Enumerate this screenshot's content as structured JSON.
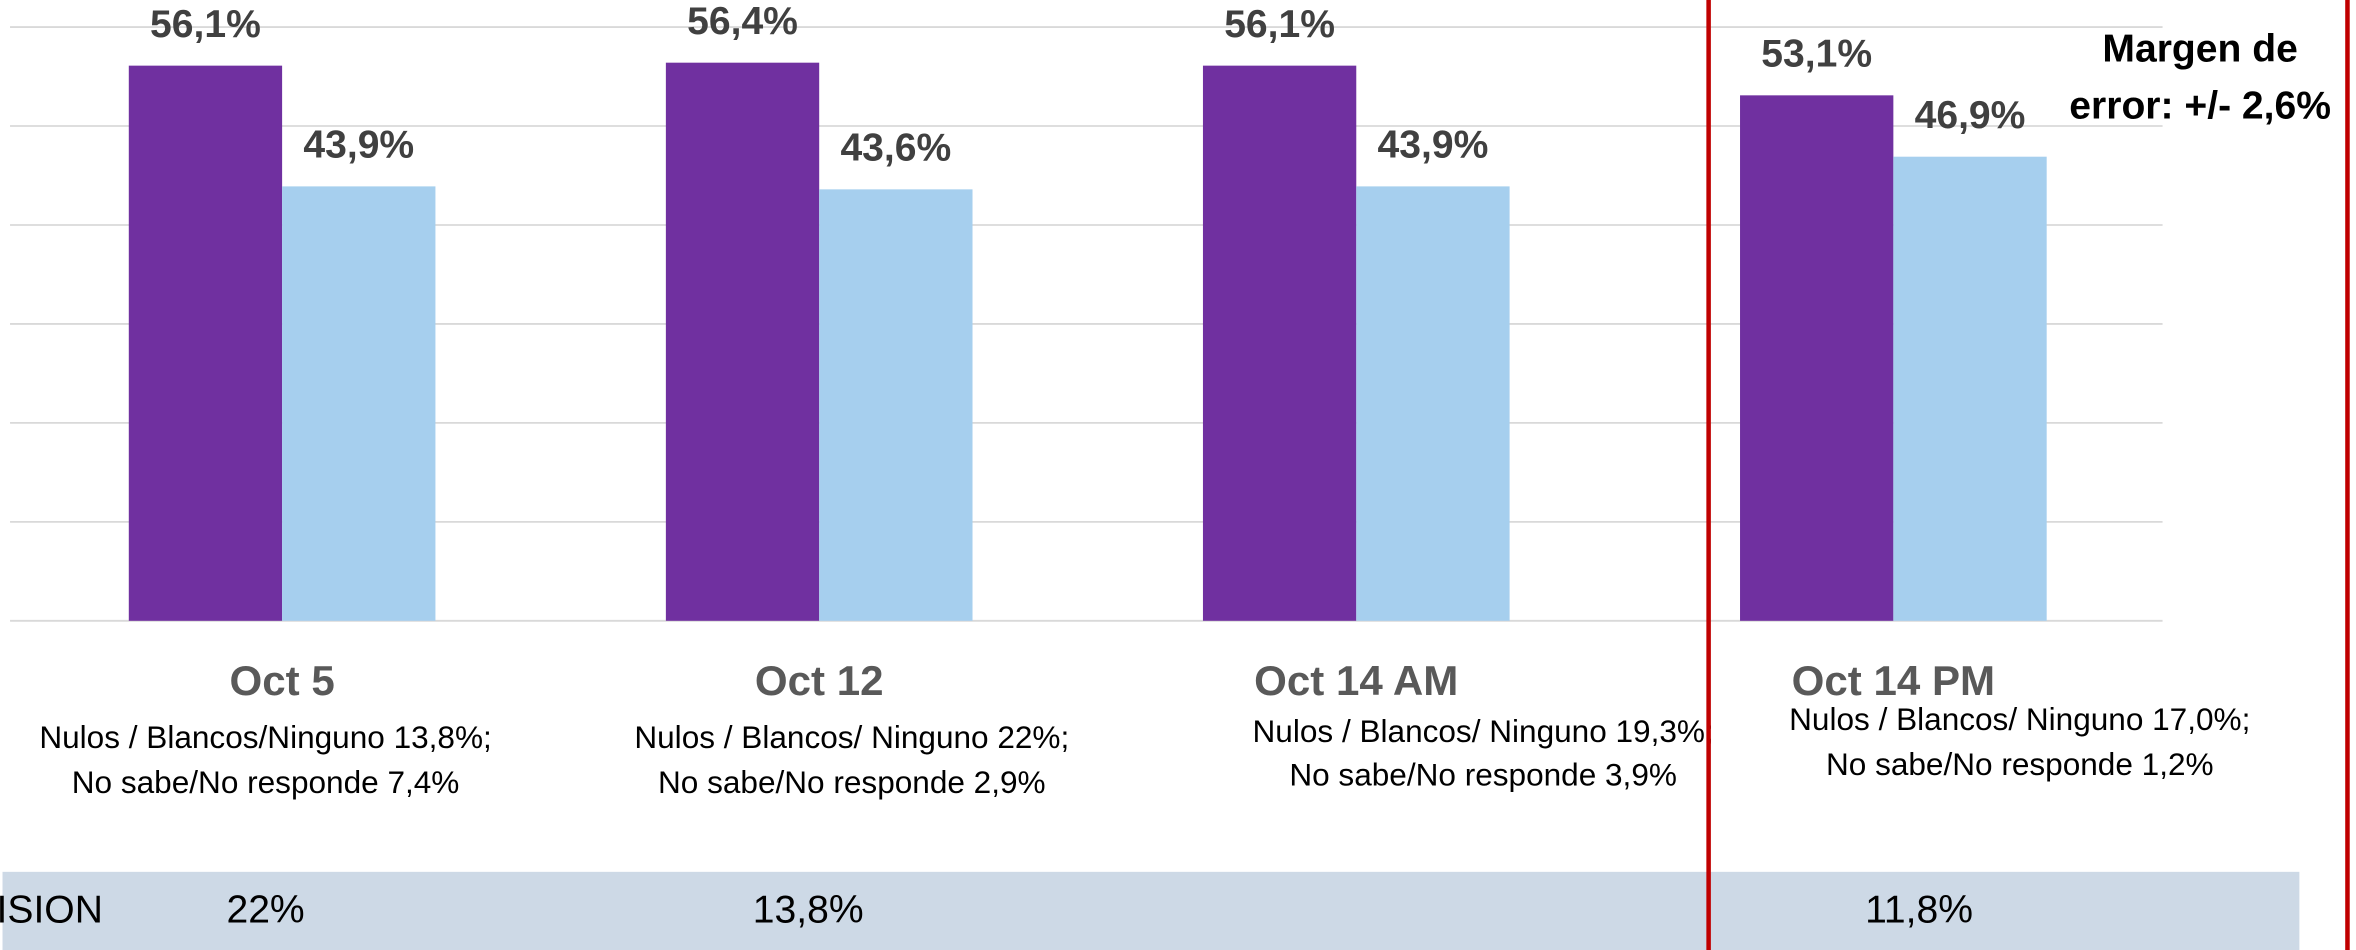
{
  "chart_data": {
    "type": "bar",
    "categories": [
      "Oct 5",
      "Oct 12",
      "Oct 14 AM",
      "Oct 14 PM"
    ],
    "notes": [
      [
        "Nulos / Blancos/Ninguno 13,8%;",
        "No sabe/No responde 7,4%"
      ],
      [
        "Nulos / Blancos/ Ninguno 22%;",
        "No sabe/No responde 2,9%"
      ],
      [
        "Nulos / Blancos/ Ninguno 19,3%;",
        "No sabe/No responde 3,9%"
      ],
      [
        "Nulos / Blancos/ Ninguno 17,0%;",
        "No sabe/No responde 1,2%"
      ]
    ],
    "series": [
      {
        "color": "#7030a0",
        "values": [
          56.1,
          56.4,
          56.1,
          53.1
        ],
        "value_labels": [
          "56,1%",
          "56,4%",
          "56,1%",
          "53,1%"
        ]
      },
      {
        "color": "#a6cfee",
        "values": [
          43.9,
          43.6,
          43.9,
          46.9
        ],
        "value_labels": [
          "43,9%",
          "43,6%",
          "43,9%",
          "46,9%"
        ]
      }
    ],
    "ylim": [
      0,
      60
    ],
    "yticks": [
      0,
      10,
      20,
      30,
      40,
      50,
      60
    ],
    "grid": true,
    "annotation": [
      "Margen de",
      "error: +/- 2,6%"
    ],
    "bottom_row": {
      "label": "ISION",
      "values": [
        "22%",
        "13,8%",
        null,
        "11,8%"
      ]
    }
  }
}
